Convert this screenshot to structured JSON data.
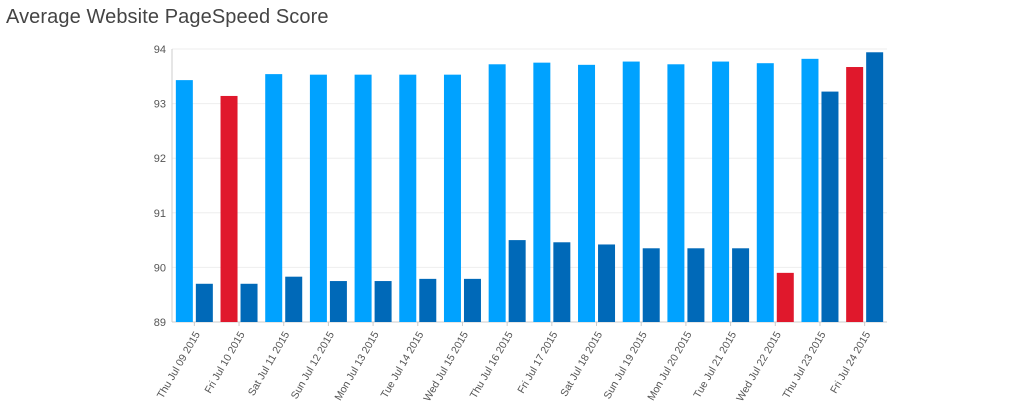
{
  "title": "Average Website PageSpeed Score",
  "colors": {
    "series_a": "#00a2ff",
    "series_b": "#0069b8",
    "highlight": "#e0182c",
    "grid": "#eeeeee",
    "axis": "#cccccc"
  },
  "chart_data": {
    "type": "bar",
    "title": "Average Website PageSpeed Score",
    "xlabel": "",
    "ylabel": "",
    "ylim": [
      89,
      94
    ],
    "yticks": [
      "89",
      "90",
      "91",
      "92",
      "93",
      "94"
    ],
    "grid": true,
    "categories": [
      "Thu Jul 09 2015",
      "Fri Jul 10 2015",
      "Sat Jul 11 2015",
      "Sun Jul 12 2015",
      "Mon Jul 13 2015",
      "Tue Jul 14 2015",
      "Wed Jul 15 2015",
      "Thu Jul 16 2015",
      "Fri Jul 17 2015",
      "Sat Jul 18 2015",
      "Sun Jul 19 2015",
      "Mon Jul 20 2015",
      "Tue Jul 21 2015",
      "Wed Jul 22 2015",
      "Thu Jul 23 2015",
      "Fri Jul 24 2015"
    ],
    "series": [
      {
        "values": [
          93.43,
          93.14,
          93.54,
          93.53,
          93.53,
          93.53,
          93.53,
          93.72,
          93.75,
          93.71,
          93.77,
          93.72,
          93.77,
          93.74,
          93.82,
          93.67
        ],
        "highlight": [
          false,
          true,
          false,
          false,
          false,
          false,
          false,
          false,
          false,
          false,
          false,
          false,
          false,
          false,
          false,
          true
        ]
      },
      {
        "values": [
          89.7,
          89.7,
          89.83,
          89.75,
          89.75,
          89.79,
          89.79,
          90.5,
          90.46,
          90.42,
          90.35,
          90.35,
          90.35,
          89.9,
          93.22,
          93.94
        ],
        "highlight": [
          false,
          false,
          false,
          false,
          false,
          false,
          false,
          false,
          false,
          false,
          false,
          false,
          false,
          true,
          false,
          false
        ]
      }
    ]
  }
}
